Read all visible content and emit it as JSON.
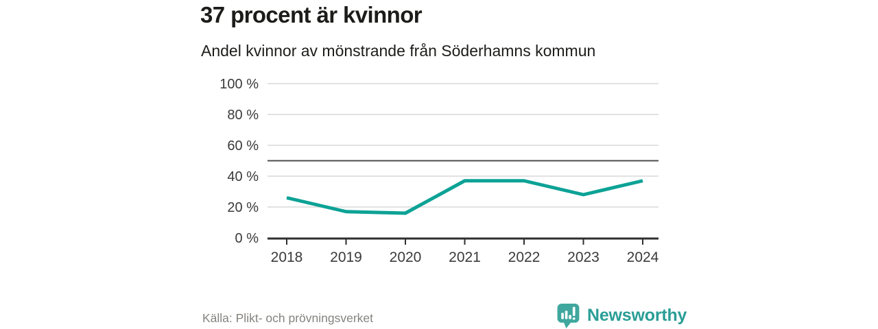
{
  "chart_data": {
    "type": "line",
    "title": "37 procent är kvinnor",
    "subtitle": "Andel kvinnor av mönstrande från Söderhamns kommun",
    "x": [
      "2018",
      "2019",
      "2020",
      "2021",
      "2022",
      "2023",
      "2024"
    ],
    "series": [
      {
        "name": "Andel kvinnor av mönstrande",
        "values": [
          26,
          17,
          16,
          37,
          37,
          28,
          37
        ]
      }
    ],
    "unit": "%",
    "ylim": [
      0,
      100
    ],
    "y_ticks": [
      0,
      20,
      40,
      60,
      80,
      100
    ],
    "y_tick_suffix": " %",
    "reference_line_y": 50,
    "grid": true,
    "legend": "none",
    "colors": {
      "line": "#0da296",
      "gridline": "#e2e2e2",
      "reference_line": "#4d4d4d",
      "axis": "#2f2f2f",
      "tick_label": "#3a3a3a"
    }
  },
  "footer": {
    "source": "Källa: Plikt- och prövningsverket",
    "brand": {
      "name": "Newsworthy",
      "icon": "bar-chart-speech-bubble-icon",
      "icon_color": "#3fa79d",
      "text_color": "#2a9e96"
    }
  }
}
